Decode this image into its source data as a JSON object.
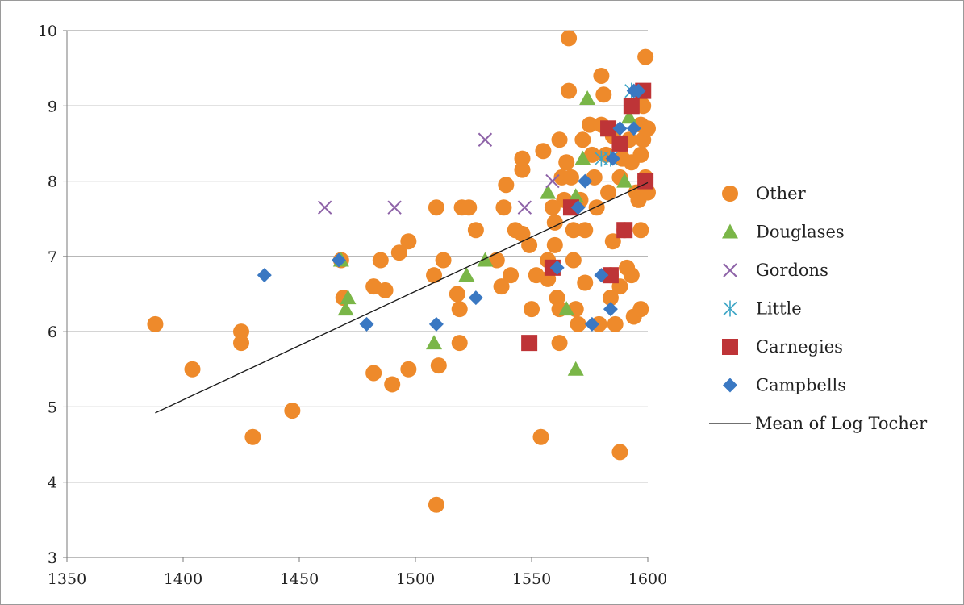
{
  "chart_data": {
    "type": "scatter",
    "title": "",
    "xlabel": "",
    "ylabel": "",
    "xlim": [
      1350,
      1600
    ],
    "ylim": [
      3,
      10
    ],
    "xticks": [
      1350,
      1400,
      1450,
      1500,
      1550,
      1600
    ],
    "yticks": [
      3,
      4,
      5,
      6,
      7,
      8,
      9,
      10
    ],
    "grid": {
      "horizontal": true,
      "vertical": false
    },
    "legend_position": "right",
    "series": [
      {
        "name": "Other",
        "marker": "circle",
        "color": "#ee8a2b",
        "points": [
          [
            1388,
            6.1
          ],
          [
            1404,
            5.5
          ],
          [
            1425,
            6.0
          ],
          [
            1425,
            5.85
          ],
          [
            1430,
            4.6
          ],
          [
            1447,
            4.95
          ],
          [
            1468,
            6.95
          ],
          [
            1469,
            6.45
          ],
          [
            1482,
            6.6
          ],
          [
            1482,
            5.45
          ],
          [
            1485,
            6.95
          ],
          [
            1487,
            6.55
          ],
          [
            1490,
            5.3
          ],
          [
            1493,
            7.05
          ],
          [
            1497,
            7.2
          ],
          [
            1497,
            5.5
          ],
          [
            1508,
            6.75
          ],
          [
            1509,
            7.65
          ],
          [
            1510,
            5.55
          ],
          [
            1512,
            6.95
          ],
          [
            1509,
            3.7
          ],
          [
            1518,
            6.5
          ],
          [
            1519,
            6.3
          ],
          [
            1519,
            5.85
          ],
          [
            1520,
            7.65
          ],
          [
            1523,
            7.65
          ],
          [
            1526,
            7.35
          ],
          [
            1535,
            6.95
          ],
          [
            1537,
            6.6
          ],
          [
            1538,
            7.65
          ],
          [
            1539,
            7.95
          ],
          [
            1541,
            6.75
          ],
          [
            1543,
            7.35
          ],
          [
            1546,
            8.3
          ],
          [
            1546,
            8.15
          ],
          [
            1546,
            7.3
          ],
          [
            1549,
            7.15
          ],
          [
            1550,
            6.3
          ],
          [
            1552,
            6.75
          ],
          [
            1554,
            4.6
          ],
          [
            1555,
            8.4
          ],
          [
            1557,
            6.95
          ],
          [
            1557,
            6.7
          ],
          [
            1559,
            7.65
          ],
          [
            1560,
            7.45
          ],
          [
            1560,
            7.15
          ],
          [
            1561,
            6.45
          ],
          [
            1562,
            6.3
          ],
          [
            1562,
            5.85
          ],
          [
            1562,
            8.55
          ],
          [
            1563,
            8.05
          ],
          [
            1564,
            7.75
          ],
          [
            1565,
            8.25
          ],
          [
            1566,
            9.9
          ],
          [
            1566,
            9.2
          ],
          [
            1567,
            8.05
          ],
          [
            1568,
            7.35
          ],
          [
            1568,
            6.95
          ],
          [
            1569,
            6.3
          ],
          [
            1570,
            6.1
          ],
          [
            1571,
            7.75
          ],
          [
            1572,
            8.55
          ],
          [
            1573,
            7.35
          ],
          [
            1573,
            6.65
          ],
          [
            1575,
            8.75
          ],
          [
            1576,
            8.35
          ],
          [
            1577,
            8.05
          ],
          [
            1578,
            7.65
          ],
          [
            1579,
            6.1
          ],
          [
            1580,
            9.4
          ],
          [
            1580,
            8.75
          ],
          [
            1581,
            9.15
          ],
          [
            1582,
            8.35
          ],
          [
            1583,
            7.85
          ],
          [
            1584,
            6.75
          ],
          [
            1584,
            6.45
          ],
          [
            1585,
            8.6
          ],
          [
            1585,
            7.2
          ],
          [
            1586,
            6.1
          ],
          [
            1588,
            8.05
          ],
          [
            1588,
            6.6
          ],
          [
            1588,
            4.4
          ],
          [
            1589,
            8.3
          ],
          [
            1590,
            7.35
          ],
          [
            1591,
            6.85
          ],
          [
            1592,
            8.55
          ],
          [
            1593,
            8.25
          ],
          [
            1593,
            6.75
          ],
          [
            1594,
            6.2
          ],
          [
            1595,
            7.85
          ],
          [
            1596,
            7.75
          ],
          [
            1597,
            8.75
          ],
          [
            1597,
            8.35
          ],
          [
            1597,
            7.35
          ],
          [
            1597,
            6.3
          ],
          [
            1598,
            9.0
          ],
          [
            1598,
            8.55
          ],
          [
            1599,
            9.65
          ],
          [
            1599,
            8.05
          ],
          [
            1600,
            7.85
          ],
          [
            1600,
            8.7
          ]
        ]
      },
      {
        "name": "Douglases",
        "marker": "triangle",
        "color": "#7ab648",
        "points": [
          [
            1468,
            6.95
          ],
          [
            1471,
            6.45
          ],
          [
            1470,
            6.3
          ],
          [
            1508,
            5.85
          ],
          [
            1522,
            6.75
          ],
          [
            1530,
            6.95
          ],
          [
            1557,
            7.85
          ],
          [
            1565,
            6.3
          ],
          [
            1569,
            5.5
          ],
          [
            1569,
            7.8
          ],
          [
            1572,
            8.3
          ],
          [
            1574,
            9.1
          ],
          [
            1590,
            8.0
          ],
          [
            1592,
            8.85
          ]
        ]
      },
      {
        "name": "Gordons",
        "marker": "x",
        "color": "#8e63a8",
        "points": [
          [
            1461,
            7.65
          ],
          [
            1491,
            7.65
          ],
          [
            1530,
            8.55
          ],
          [
            1547,
            7.65
          ],
          [
            1559,
            8.0
          ]
        ]
      },
      {
        "name": "Little",
        "marker": "asterisk",
        "color": "#3ea6c6",
        "points": [
          [
            1580,
            8.3
          ],
          [
            1584,
            8.3
          ],
          [
            1593,
            9.2
          ]
        ]
      },
      {
        "name": "Carnegies",
        "marker": "square",
        "color": "#be3437",
        "points": [
          [
            1549,
            5.85
          ],
          [
            1559,
            6.85
          ],
          [
            1567,
            7.65
          ],
          [
            1583,
            8.7
          ],
          [
            1584,
            6.75
          ],
          [
            1588,
            8.5
          ],
          [
            1590,
            7.35
          ],
          [
            1593,
            9.0
          ],
          [
            1598,
            9.2
          ],
          [
            1599,
            8.0
          ]
        ]
      },
      {
        "name": "Campbells",
        "marker": "diamond",
        "color": "#3a78c2",
        "points": [
          [
            1435,
            6.75
          ],
          [
            1467,
            6.95
          ],
          [
            1479,
            6.1
          ],
          [
            1509,
            6.1
          ],
          [
            1526,
            6.45
          ],
          [
            1561,
            6.85
          ],
          [
            1570,
            7.65
          ],
          [
            1573,
            8.0
          ],
          [
            1576,
            6.1
          ],
          [
            1580,
            6.75
          ],
          [
            1584,
            6.3
          ],
          [
            1585,
            8.3
          ],
          [
            1588,
            8.7
          ],
          [
            1594,
            8.7
          ],
          [
            1594,
            9.2
          ],
          [
            1596,
            9.2
          ]
        ]
      },
      {
        "name": "Mean of Log Tocher",
        "marker": "line",
        "color": "#1a1a1a",
        "points": [
          [
            1388,
            4.92
          ],
          [
            1600,
            7.98
          ]
        ]
      }
    ]
  }
}
